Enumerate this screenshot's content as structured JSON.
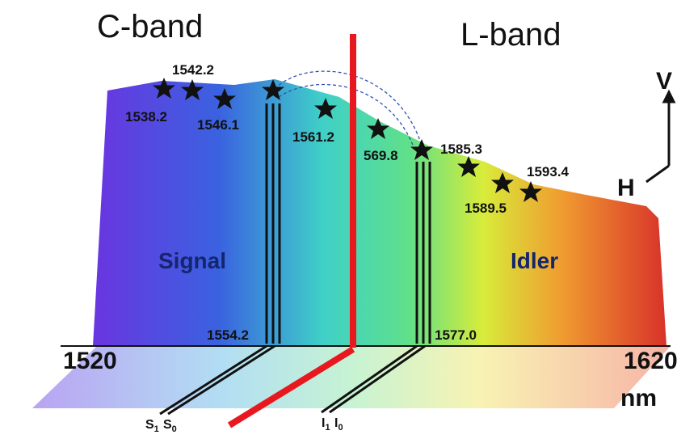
{
  "bands": {
    "left": "C-band",
    "right": "L-band"
  },
  "star_labels": [
    "1538.2",
    "1542.2",
    "1546.1",
    "1561.2",
    "569.8",
    "1585.3",
    "1589.5",
    "1593.4"
  ],
  "regions": {
    "signal": "Signal",
    "idler": "Idler"
  },
  "pump_labels": {
    "signal": "1554.2",
    "idler": "1577.0"
  },
  "axis": {
    "start": "1520",
    "end": "1620",
    "unit": "nm"
  },
  "polarization": {
    "vertical": "V",
    "horizontal": "H"
  },
  "modes": {
    "signal": {
      "a": {
        "base": "S",
        "sub": "1"
      },
      "b": {
        "base": "S",
        "sub": "0"
      }
    },
    "idler": {
      "a": {
        "base": "I",
        "sub": "1"
      },
      "b": {
        "base": "I",
        "sub": "0"
      }
    }
  }
}
